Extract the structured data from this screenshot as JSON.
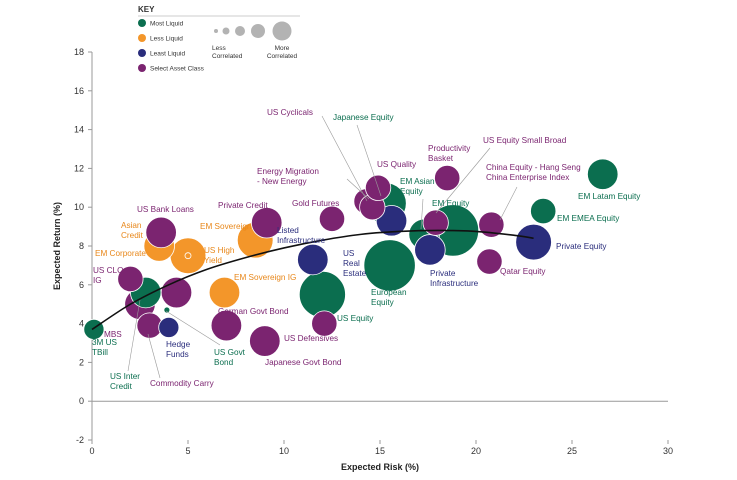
{
  "colors": {
    "most_liquid": "#0b6e4f",
    "less_liquid": "#f3962a",
    "least_liquid": "#2a2d7c",
    "select_asset_class": "#7b2470",
    "curve": "#111111",
    "axis": "#999999",
    "key_circle": "#b3b3b3"
  },
  "key": {
    "title": "KEY",
    "items": [
      {
        "label": "Most Liquid",
        "color_key": "most_liquid"
      },
      {
        "label": "Less Liquid",
        "color_key": "less_liquid"
      },
      {
        "label": "Least Liquid",
        "color_key": "least_liquid"
      },
      {
        "label": "Select Asset Class",
        "color_key": "select_asset_class"
      }
    ],
    "less_correlated": [
      "Less",
      "Correlated"
    ],
    "more_correlated": [
      "More",
      "Correlated"
    ]
  },
  "chart_data": {
    "type": "scatter",
    "title": "",
    "xlabel": "Expected Risk (%)",
    "ylabel": "Expected Return (%)",
    "xlim": [
      0,
      30
    ],
    "ylim": [
      -2,
      18
    ],
    "xticks": [
      0,
      5,
      10,
      15,
      20,
      25,
      30
    ],
    "yticks": [
      -2,
      0,
      2,
      4,
      6,
      8,
      10,
      12,
      14,
      16,
      18
    ],
    "size_meaning": "correlation (larger = more correlated)",
    "curve": [
      [
        0,
        3.7
      ],
      [
        2,
        5.0
      ],
      [
        4,
        6.0
      ],
      [
        6,
        6.8
      ],
      [
        8,
        7.4
      ],
      [
        10,
        7.9
      ],
      [
        12,
        8.3
      ],
      [
        14,
        8.6
      ],
      [
        16,
        8.75
      ],
      [
        18,
        8.8
      ],
      [
        20,
        8.75
      ],
      [
        22,
        8.55
      ],
      [
        23,
        8.4
      ]
    ],
    "points": [
      {
        "name": "3M US TBill",
        "label_lines": [
          "3M US",
          "TBill"
        ],
        "x": 0.1,
        "y": 3.7,
        "size": 1,
        "category": "most_liquid"
      },
      {
        "name": "MBS",
        "label_lines": [
          "MBS"
        ],
        "x": 2.5,
        "y": 5.0,
        "size": 3,
        "category": "select_asset_class"
      },
      {
        "name": "US Inter Credit",
        "label_lines": [
          "US Inter",
          "Credit"
        ],
        "x": 2.8,
        "y": 5.6,
        "size": 3,
        "category": "most_liquid"
      },
      {
        "name": "US CLO IG",
        "label_lines": [
          "US CLO",
          "IG"
        ],
        "x": 2.0,
        "y": 6.3,
        "size": 2,
        "category": "select_asset_class"
      },
      {
        "name": "EM Corporate",
        "label_lines": [
          "EM Corporate"
        ],
        "x": 3.5,
        "y": 8.0,
        "size": 3,
        "category": "less_liquid"
      },
      {
        "name": "US Bank Loans",
        "label_lines": [
          "US Bank Loans"
        ],
        "x": 3.6,
        "y": 8.7,
        "size": 3,
        "category": "select_asset_class"
      },
      {
        "name": "Asian Credit",
        "label_lines": [
          "Asian",
          "Credit"
        ],
        "x": 5.0,
        "y": 7.5,
        "size": 4,
        "category": "less_liquid"
      },
      {
        "name": "US Govt Bond",
        "label_lines": [
          "US Govt",
          "Bond"
        ],
        "x": 3.9,
        "y": 4.7,
        "size": 0,
        "category": "most_liquid"
      },
      {
        "name": "Hedge Funds",
        "label_lines": [
          "Hedge",
          "Funds"
        ],
        "x": 4.0,
        "y": 3.8,
        "size": 1,
        "category": "least_liquid"
      },
      {
        "name": "Commodity Carry",
        "label_lines": [
          "Commodity Carry"
        ],
        "x": 3.0,
        "y": 3.9,
        "size": 2,
        "category": "select_asset_class"
      },
      {
        "name": "Unlabeled Select Asset Class",
        "label_lines": [],
        "x": 4.4,
        "y": 5.6,
        "size": 3,
        "category": "select_asset_class"
      },
      {
        "name": "EM Sovereign",
        "label_lines": [
          "EM Sovereign"
        ],
        "x": 8.5,
        "y": 8.3,
        "size": 4,
        "category": "less_liquid"
      },
      {
        "name": "US High Yield",
        "label_lines": [
          "US High",
          "Yield"
        ],
        "x": 5.0,
        "y": 7.5,
        "size": 0,
        "category": "less_liquid"
      },
      {
        "name": "Private Credit",
        "label_lines": [
          "Private Credit"
        ],
        "x": 9.1,
        "y": 9.2,
        "size": 3,
        "category": "select_asset_class"
      },
      {
        "name": "EM Sovereign IG",
        "label_lines": [
          "EM Sovereign IG"
        ],
        "x": 6.9,
        "y": 5.6,
        "size": 3,
        "category": "less_liquid"
      },
      {
        "name": "German Govt Bond",
        "label_lines": [
          "German Govt Bond"
        ],
        "x": 7.0,
        "y": 3.9,
        "size": 3,
        "category": "select_asset_class"
      },
      {
        "name": "Japanese Govt Bond",
        "label_lines": [
          "Japanese Govt Bond"
        ],
        "x": 9.0,
        "y": 3.1,
        "size": 3,
        "category": "select_asset_class"
      },
      {
        "name": "Listed Infrastructure",
        "label_lines": [
          "Listed",
          "Infrastructure"
        ],
        "x": 11.5,
        "y": 7.3,
        "size": 3,
        "category": "least_liquid"
      },
      {
        "name": "US Defensives",
        "label_lines": [
          "US Defensives"
        ],
        "x": 12.1,
        "y": 4.0,
        "size": 2,
        "category": "select_asset_class"
      },
      {
        "name": "US Equity",
        "label_lines": [
          "US Equity"
        ],
        "x": 12.0,
        "y": 5.5,
        "size": 6,
        "category": "most_liquid"
      },
      {
        "name": "Gold Futures",
        "label_lines": [
          "Gold Futures"
        ],
        "x": 12.5,
        "y": 9.4,
        "size": 2,
        "category": "select_asset_class"
      },
      {
        "name": "Energy Migration - New Energy",
        "label_lines": [
          "Energy Migration",
          "- New Energy"
        ],
        "x": 14.3,
        "y": 10.3,
        "size": 2,
        "category": "select_asset_class"
      },
      {
        "name": "US Cyclicals",
        "label_lines": [
          "US Cyclicals"
        ],
        "x": 14.6,
        "y": 10.0,
        "size": 2,
        "category": "select_asset_class"
      },
      {
        "name": "US Quality",
        "label_lines": [
          "US Quality"
        ],
        "x": 14.9,
        "y": 11.0,
        "size": 2,
        "category": "select_asset_class"
      },
      {
        "name": "Japanese Equity",
        "label_lines": [
          "Japanese Equity"
        ],
        "x": 15.3,
        "y": 10.2,
        "size": 5,
        "category": "most_liquid"
      },
      {
        "name": "US Real Estate",
        "label_lines": [
          "US",
          "Real",
          "Estate"
        ],
        "x": 15.6,
        "y": 9.3,
        "size": 3,
        "category": "least_liquid"
      },
      {
        "name": "European Equity",
        "label_lines": [
          "European",
          "Equity"
        ],
        "x": 15.5,
        "y": 7.0,
        "size": 7,
        "category": "most_liquid"
      },
      {
        "name": "EM Asian Equity",
        "label_lines": [
          "EM Asian",
          "Equity"
        ],
        "x": 17.3,
        "y": 8.6,
        "size": 3,
        "category": "most_liquid"
      },
      {
        "name": "Private Infrastructure",
        "label_lines": [
          "Private",
          "Infrastructure"
        ],
        "x": 17.6,
        "y": 7.8,
        "size": 3,
        "category": "least_liquid"
      },
      {
        "name": "Productivity Basket",
        "label_lines": [
          "Productivity",
          "Basket"
        ],
        "x": 18.5,
        "y": 11.5,
        "size": 2,
        "category": "select_asset_class"
      },
      {
        "name": "US Equity Small Broad",
        "label_lines": [
          "US Equity Small Broad"
        ],
        "x": 17.9,
        "y": 9.2,
        "size": 2,
        "category": "select_asset_class"
      },
      {
        "name": "EM Equity",
        "label_lines": [
          "EM Equity"
        ],
        "x": 18.8,
        "y": 8.8,
        "size": 7,
        "category": "most_liquid"
      },
      {
        "name": "China Equity - Hang Seng China Enterprise Index",
        "label_lines": [
          "China Equity - Hang Seng",
          "China Enterprise Index"
        ],
        "x": 20.8,
        "y": 9.1,
        "size": 2,
        "category": "select_asset_class"
      },
      {
        "name": "Qatar Equity",
        "label_lines": [
          "Qatar Equity"
        ],
        "x": 20.7,
        "y": 7.2,
        "size": 2,
        "category": "select_asset_class"
      },
      {
        "name": "Private Equity",
        "label_lines": [
          "Private Equity"
        ],
        "x": 23.0,
        "y": 8.2,
        "size": 4,
        "category": "least_liquid"
      },
      {
        "name": "EM EMEA Equity",
        "label_lines": [
          "EM EMEA Equity"
        ],
        "x": 23.5,
        "y": 9.8,
        "size": 2,
        "category": "most_liquid"
      },
      {
        "name": "EM Latam Equity",
        "label_lines": [
          "EM Latam Equity"
        ],
        "x": 26.6,
        "y": 11.7,
        "size": 3,
        "category": "most_liquid"
      }
    ]
  }
}
